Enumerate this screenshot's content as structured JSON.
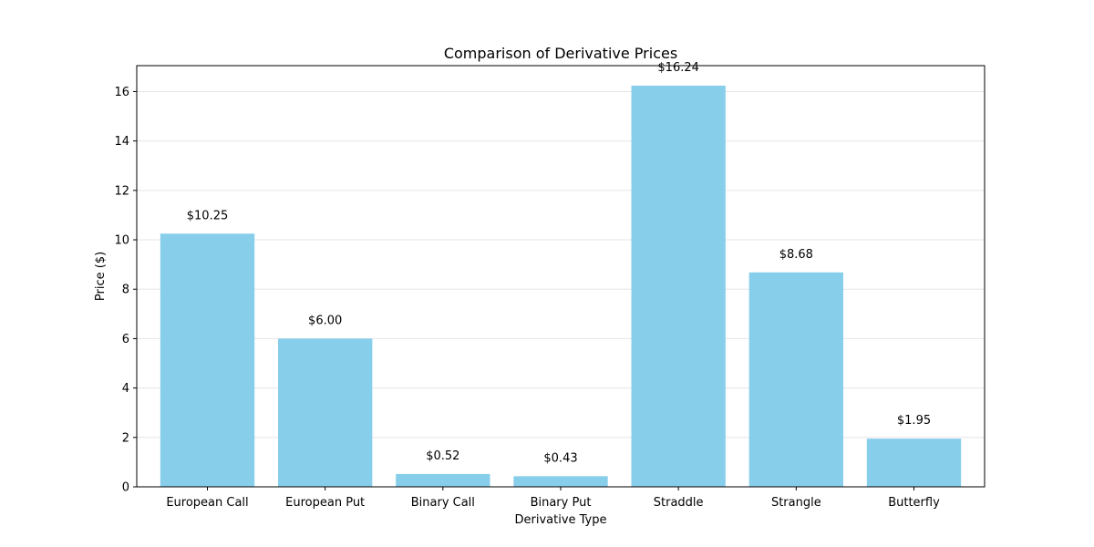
{
  "chart_data": {
    "type": "bar",
    "title": "Comparison of Derivative Prices",
    "xlabel": "Derivative Type",
    "ylabel": "Price ($)",
    "categories": [
      "European Call",
      "European Put",
      "Binary Call",
      "Binary Put",
      "Straddle",
      "Strangle",
      "Butterfly"
    ],
    "values": [
      10.25,
      6.0,
      0.52,
      0.43,
      16.24,
      8.68,
      1.95
    ],
    "data_labels": [
      "$10.25",
      "$6.00",
      "$0.52",
      "$0.43",
      "$16.24",
      "$8.68",
      "$1.95"
    ],
    "ylim": [
      0,
      17.05
    ],
    "yticks": [
      0,
      2,
      4,
      6,
      8,
      10,
      12,
      14,
      16
    ],
    "grid": true,
    "bar_color": "#87CEEB",
    "grid_color": "#e6e6e6"
  }
}
